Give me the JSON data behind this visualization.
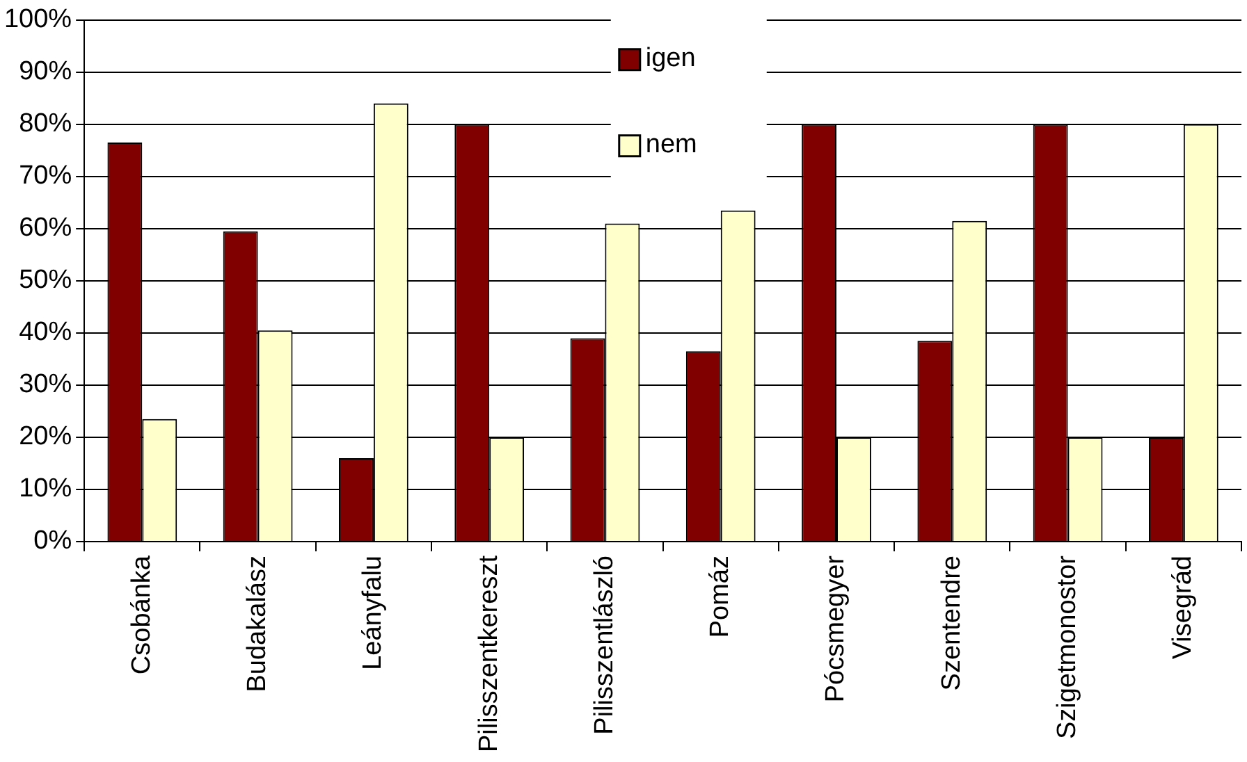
{
  "chart_data": {
    "type": "bar",
    "categories": [
      "Csobánka",
      "Budakalász",
      "Leányfalu",
      "Pilisszentkereszt",
      "Pilisszentlászló",
      "Pomáz",
      "Pócsmegyer",
      "Szentendre",
      "Szigetmonostor",
      "Visegrád"
    ],
    "series": [
      {
        "name": "igen",
        "color": "#800000",
        "values": [
          76.5,
          59.5,
          16,
          80,
          39,
          36.5,
          80,
          38.5,
          80,
          20
        ]
      },
      {
        "name": "nem",
        "color": "#ffffcc",
        "values": [
          23.5,
          40.5,
          84,
          20,
          61,
          63.5,
          20,
          61.5,
          20,
          80
        ]
      }
    ],
    "ylim": [
      0,
      100
    ],
    "yticks": [
      {
        "value": 0,
        "label": "0%"
      },
      {
        "value": 10,
        "label": "10%"
      },
      {
        "value": 20,
        "label": "20%"
      },
      {
        "value": 30,
        "label": "30%"
      },
      {
        "value": 40,
        "label": "40%"
      },
      {
        "value": 50,
        "label": "50%"
      },
      {
        "value": 60,
        "label": "60%"
      },
      {
        "value": 70,
        "label": "70%"
      },
      {
        "value": 80,
        "label": "80%"
      },
      {
        "value": 90,
        "label": "90%"
      },
      {
        "value": 100,
        "label": "100%"
      }
    ],
    "grid": "y",
    "legend": "top"
  }
}
